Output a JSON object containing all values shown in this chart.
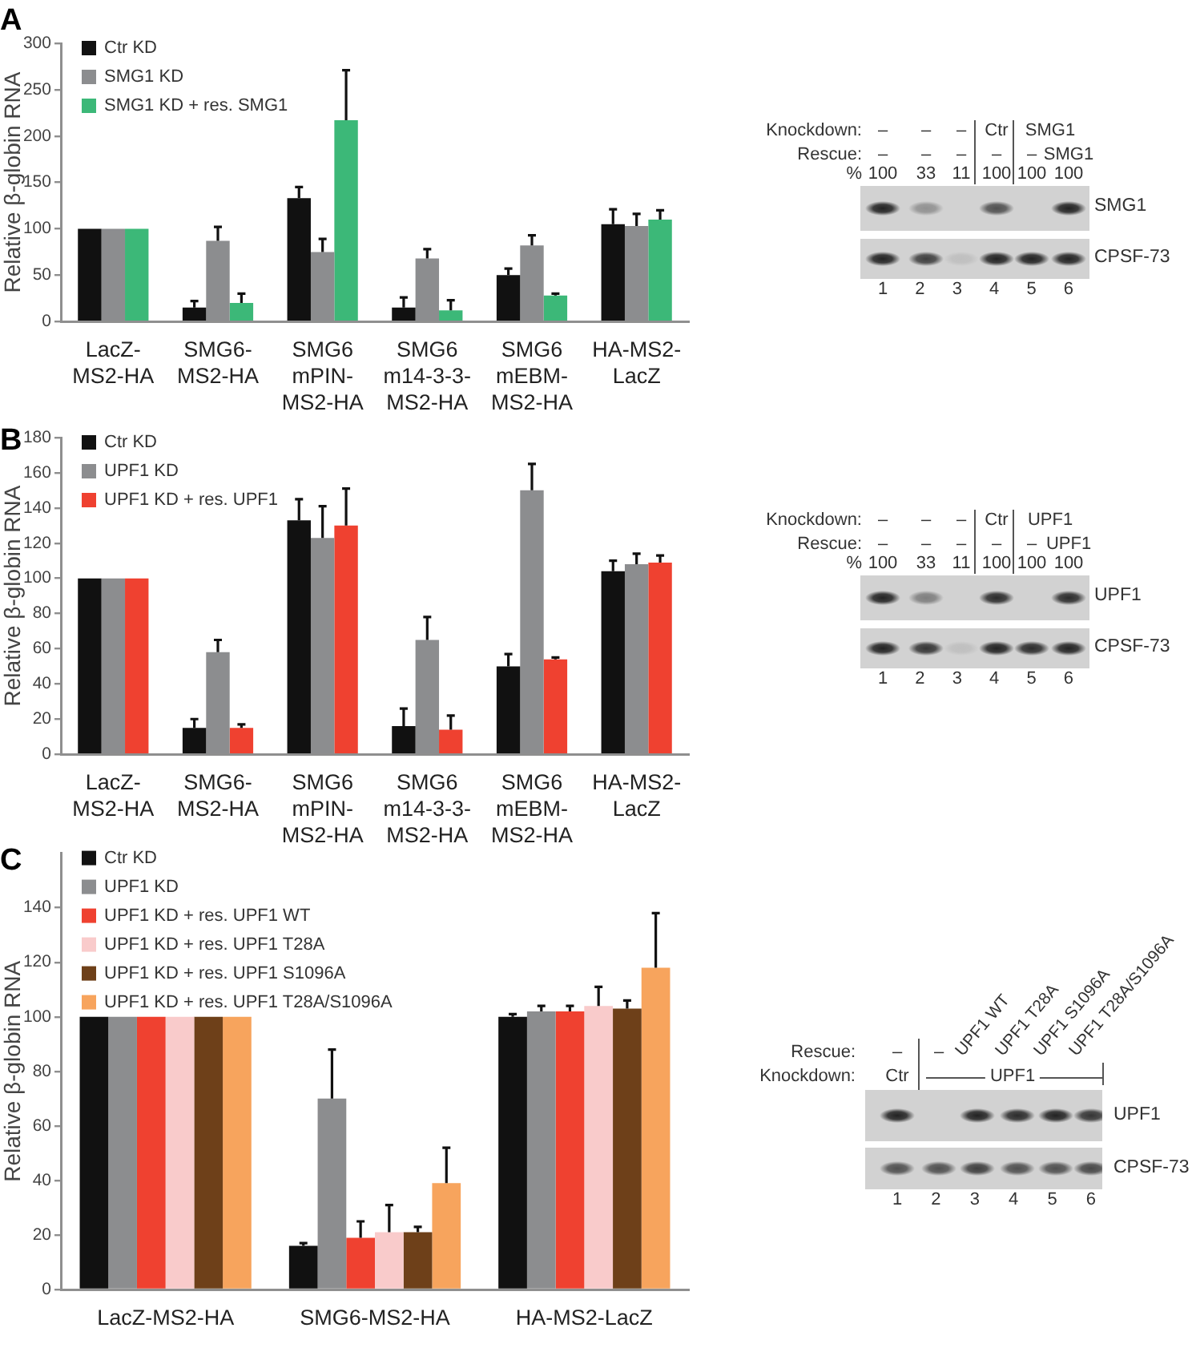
{
  "chart_data": [
    {
      "type": "bar",
      "title": "A",
      "ylabel": "Relative β-globin RNA",
      "categories": [
        "LacZ-MS2-HA",
        "SMG6-MS2-HA",
        "SMG6 mPIN-MS2-HA",
        "SMG6 m14-3-3-MS2-HA",
        "SMG6 mEBM-MS2-HA",
        "HA-MS2-LacZ"
      ],
      "series": [
        {
          "name": "Ctr KD",
          "color": "#111111",
          "values": [
            100,
            15,
            133,
            15,
            50,
            105
          ],
          "errors": [
            null,
            [
              15,
              22
            ],
            [
              133,
              145
            ],
            [
              15,
              26
            ],
            [
              50,
              57
            ],
            [
              105,
              121
            ]
          ]
        },
        {
          "name": "SMG1 KD",
          "color": "#8c8d8f",
          "values": [
            100,
            87,
            75,
            68,
            82,
            103
          ],
          "errors": [
            null,
            [
              87,
              102
            ],
            [
              75,
              89
            ],
            [
              68,
              78
            ],
            [
              82,
              93
            ],
            [
              103,
              116
            ]
          ]
        },
        {
          "name": "SMG1 KD + res. SMG1",
          "color": "#3cb878",
          "values": [
            100,
            20,
            217,
            12,
            28,
            110
          ],
          "errors": [
            null,
            [
              20,
              30
            ],
            [
              217,
              271
            ],
            [
              12,
              23
            ],
            [
              28,
              30
            ],
            [
              110,
              120
            ]
          ]
        }
      ],
      "ylim": [
        0,
        300
      ],
      "yticks": [
        0,
        50,
        100,
        150,
        200,
        250,
        300
      ],
      "legend": "top left"
    },
    {
      "type": "other",
      "annotations": [
        "Knockdown:",
        "–",
        "–",
        "–",
        "Ctr",
        "SMG1",
        "Rescue:",
        "–",
        "–",
        "–",
        "–",
        "–",
        "SMG1",
        "%",
        "100",
        "33",
        "11",
        "100",
        "100",
        "100",
        "SMG1",
        "CPSF-73",
        "1 2 3 4 5 6"
      ]
    },
    {
      "type": "bar",
      "title": "B",
      "ylabel": "Relative β-globin RNA",
      "categories": [
        "LacZ-MS2-HA",
        "SMG6-MS2-HA",
        "SMG6 mPIN-MS2-HA",
        "SMG6 m14-3-3-MS2-HA",
        "SMG6 mEBM-MS2-HA",
        "HA-MS2-LacZ"
      ],
      "series": [
        {
          "name": "Ctr KD",
          "color": "#111111",
          "values": [
            100,
            15,
            133,
            16,
            50,
            104
          ],
          "errors": [
            null,
            [
              15,
              20
            ],
            [
              133,
              145
            ],
            [
              16,
              26
            ],
            [
              50,
              57
            ],
            [
              104,
              110
            ]
          ]
        },
        {
          "name": "UPF1 KD",
          "color": "#8c8d8f",
          "values": [
            100,
            58,
            123,
            65,
            150,
            108
          ],
          "errors": [
            null,
            [
              58,
              65
            ],
            [
              123,
              141
            ],
            [
              65,
              78
            ],
            [
              150,
              165
            ],
            [
              108,
              114
            ]
          ]
        },
        {
          "name": "UPF1 KD + res. UPF1",
          "color": "#ef4130",
          "values": [
            100,
            15,
            130,
            14,
            54,
            109
          ],
          "errors": [
            null,
            [
              15,
              17
            ],
            [
              130,
              151
            ],
            [
              14,
              22
            ],
            [
              54,
              55
            ],
            [
              109,
              113
            ]
          ]
        }
      ],
      "ylim": [
        0,
        180
      ],
      "yticks": [
        0,
        20,
        40,
        60,
        80,
        100,
        120,
        140,
        160,
        180
      ],
      "legend": "top left"
    },
    {
      "type": "other",
      "annotations": [
        "Knockdown:",
        "–",
        "–",
        "–",
        "Ctr",
        "UPF1",
        "Rescue:",
        "–",
        "–",
        "–",
        "–",
        "–",
        "UPF1",
        "%",
        "100",
        "33",
        "11",
        "100",
        "100",
        "100",
        "UPF1",
        "CPSF-73",
        "1 2 3 4 5 6"
      ]
    },
    {
      "type": "bar",
      "title": "C",
      "ylabel": "Relative β-globin RNA",
      "categories": [
        "LacZ-MS2-HA",
        "SMG6-MS2-HA",
        "HA-MS2-LacZ"
      ],
      "series": [
        {
          "name": "Ctr KD",
          "color": "#111111",
          "values": [
            100,
            16,
            100
          ],
          "errors": [
            null,
            [
              16,
              17
            ],
            [
              100,
              101
            ]
          ]
        },
        {
          "name": "UPF1 KD",
          "color": "#8c8d8f",
          "values": [
            100,
            70,
            102
          ],
          "errors": [
            null,
            [
              70,
              88
            ],
            [
              102,
              104
            ]
          ]
        },
        {
          "name": "UPF1 KD + res. UPF1 WT",
          "color": "#ef4130",
          "values": [
            100,
            19,
            102
          ],
          "errors": [
            null,
            [
              19,
              25
            ],
            [
              102,
              104
            ]
          ]
        },
        {
          "name": "UPF1 KD + res. UPF1 T28A",
          "color": "#f9cbcb",
          "values": [
            100,
            21,
            104
          ],
          "errors": [
            null,
            [
              21,
              31
            ],
            [
              104,
              111
            ]
          ]
        },
        {
          "name": "UPF1 KD + res. UPF1 S1096A",
          "color": "#6e4019",
          "values": [
            100,
            21,
            103
          ],
          "errors": [
            null,
            [
              21,
              23
            ],
            [
              103,
              106
            ]
          ]
        },
        {
          "name": "UPF1 KD + res. UPF1 T28A/S1096A",
          "color": "#f7a45d",
          "values": [
            100,
            39,
            118
          ],
          "errors": [
            null,
            [
              39,
              52
            ],
            [
              118,
              138
            ]
          ]
        }
      ],
      "ylim": [
        0,
        160
      ],
      "yticks": [
        0,
        20,
        40,
        60,
        80,
        100,
        120,
        140
      ],
      "legend": "top left"
    },
    {
      "type": "other",
      "annotations": [
        "UPF1 WT",
        "UPF1 T28A",
        "UPF1 S1096A",
        "UPF1 T28A/S1096A",
        "Rescue:",
        "–",
        "–",
        "Knockdown:",
        "Ctr",
        "UPF1",
        "UPF1",
        "CPSF-73",
        "1 2 3 4 5 6"
      ]
    }
  ]
}
